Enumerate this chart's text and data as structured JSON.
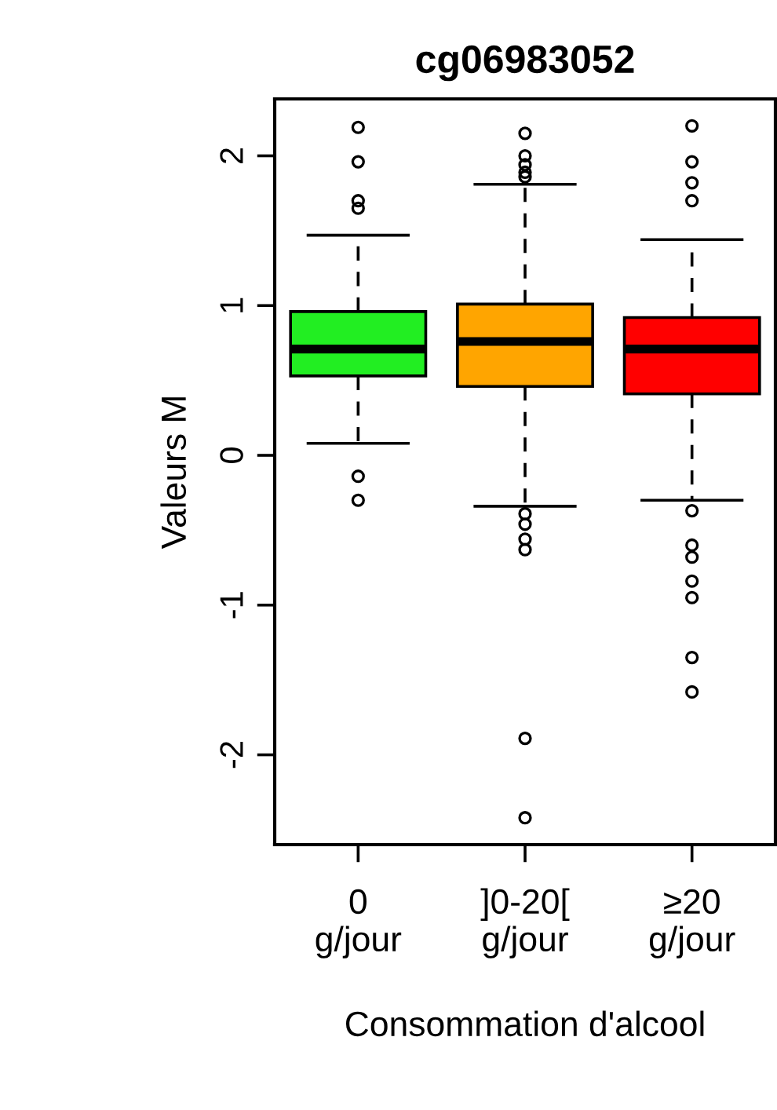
{
  "chart_data": {
    "type": "box",
    "title": "cg06983052",
    "xlabel": "Consommation d'alcool",
    "ylabel": "Valeurs M",
    "categories": [
      "0\ng/jour",
      "]0-20[\ng/jour",
      "≥20\ng/jour"
    ],
    "colors": [
      "#22ee22",
      "#ffa500",
      "#ff0000"
    ],
    "boxes": [
      {
        "low": 0.08,
        "q1": 0.53,
        "median": 0.71,
        "q3": 0.96,
        "high": 1.47,
        "outliers": [
          2.19,
          1.96,
          1.7,
          1.65,
          -0.14,
          -0.3
        ]
      },
      {
        "low": -0.34,
        "q1": 0.46,
        "median": 0.76,
        "q3": 1.01,
        "high": 1.81,
        "outliers": [
          2.15,
          2.0,
          1.94,
          1.89,
          1.86,
          -0.39,
          -0.46,
          -0.56,
          -0.63,
          -1.89,
          -2.42
        ]
      },
      {
        "low": -0.3,
        "q1": 0.41,
        "median": 0.71,
        "q3": 0.92,
        "high": 1.44,
        "outliers": [
          2.2,
          1.96,
          1.82,
          1.7,
          -0.37,
          -0.6,
          -0.68,
          -0.84,
          -0.95,
          -1.35,
          -1.58
        ]
      }
    ],
    "ylim": [
      -2.6,
      2.38
    ],
    "yticks": [
      -2,
      -1,
      0,
      1,
      2
    ]
  }
}
